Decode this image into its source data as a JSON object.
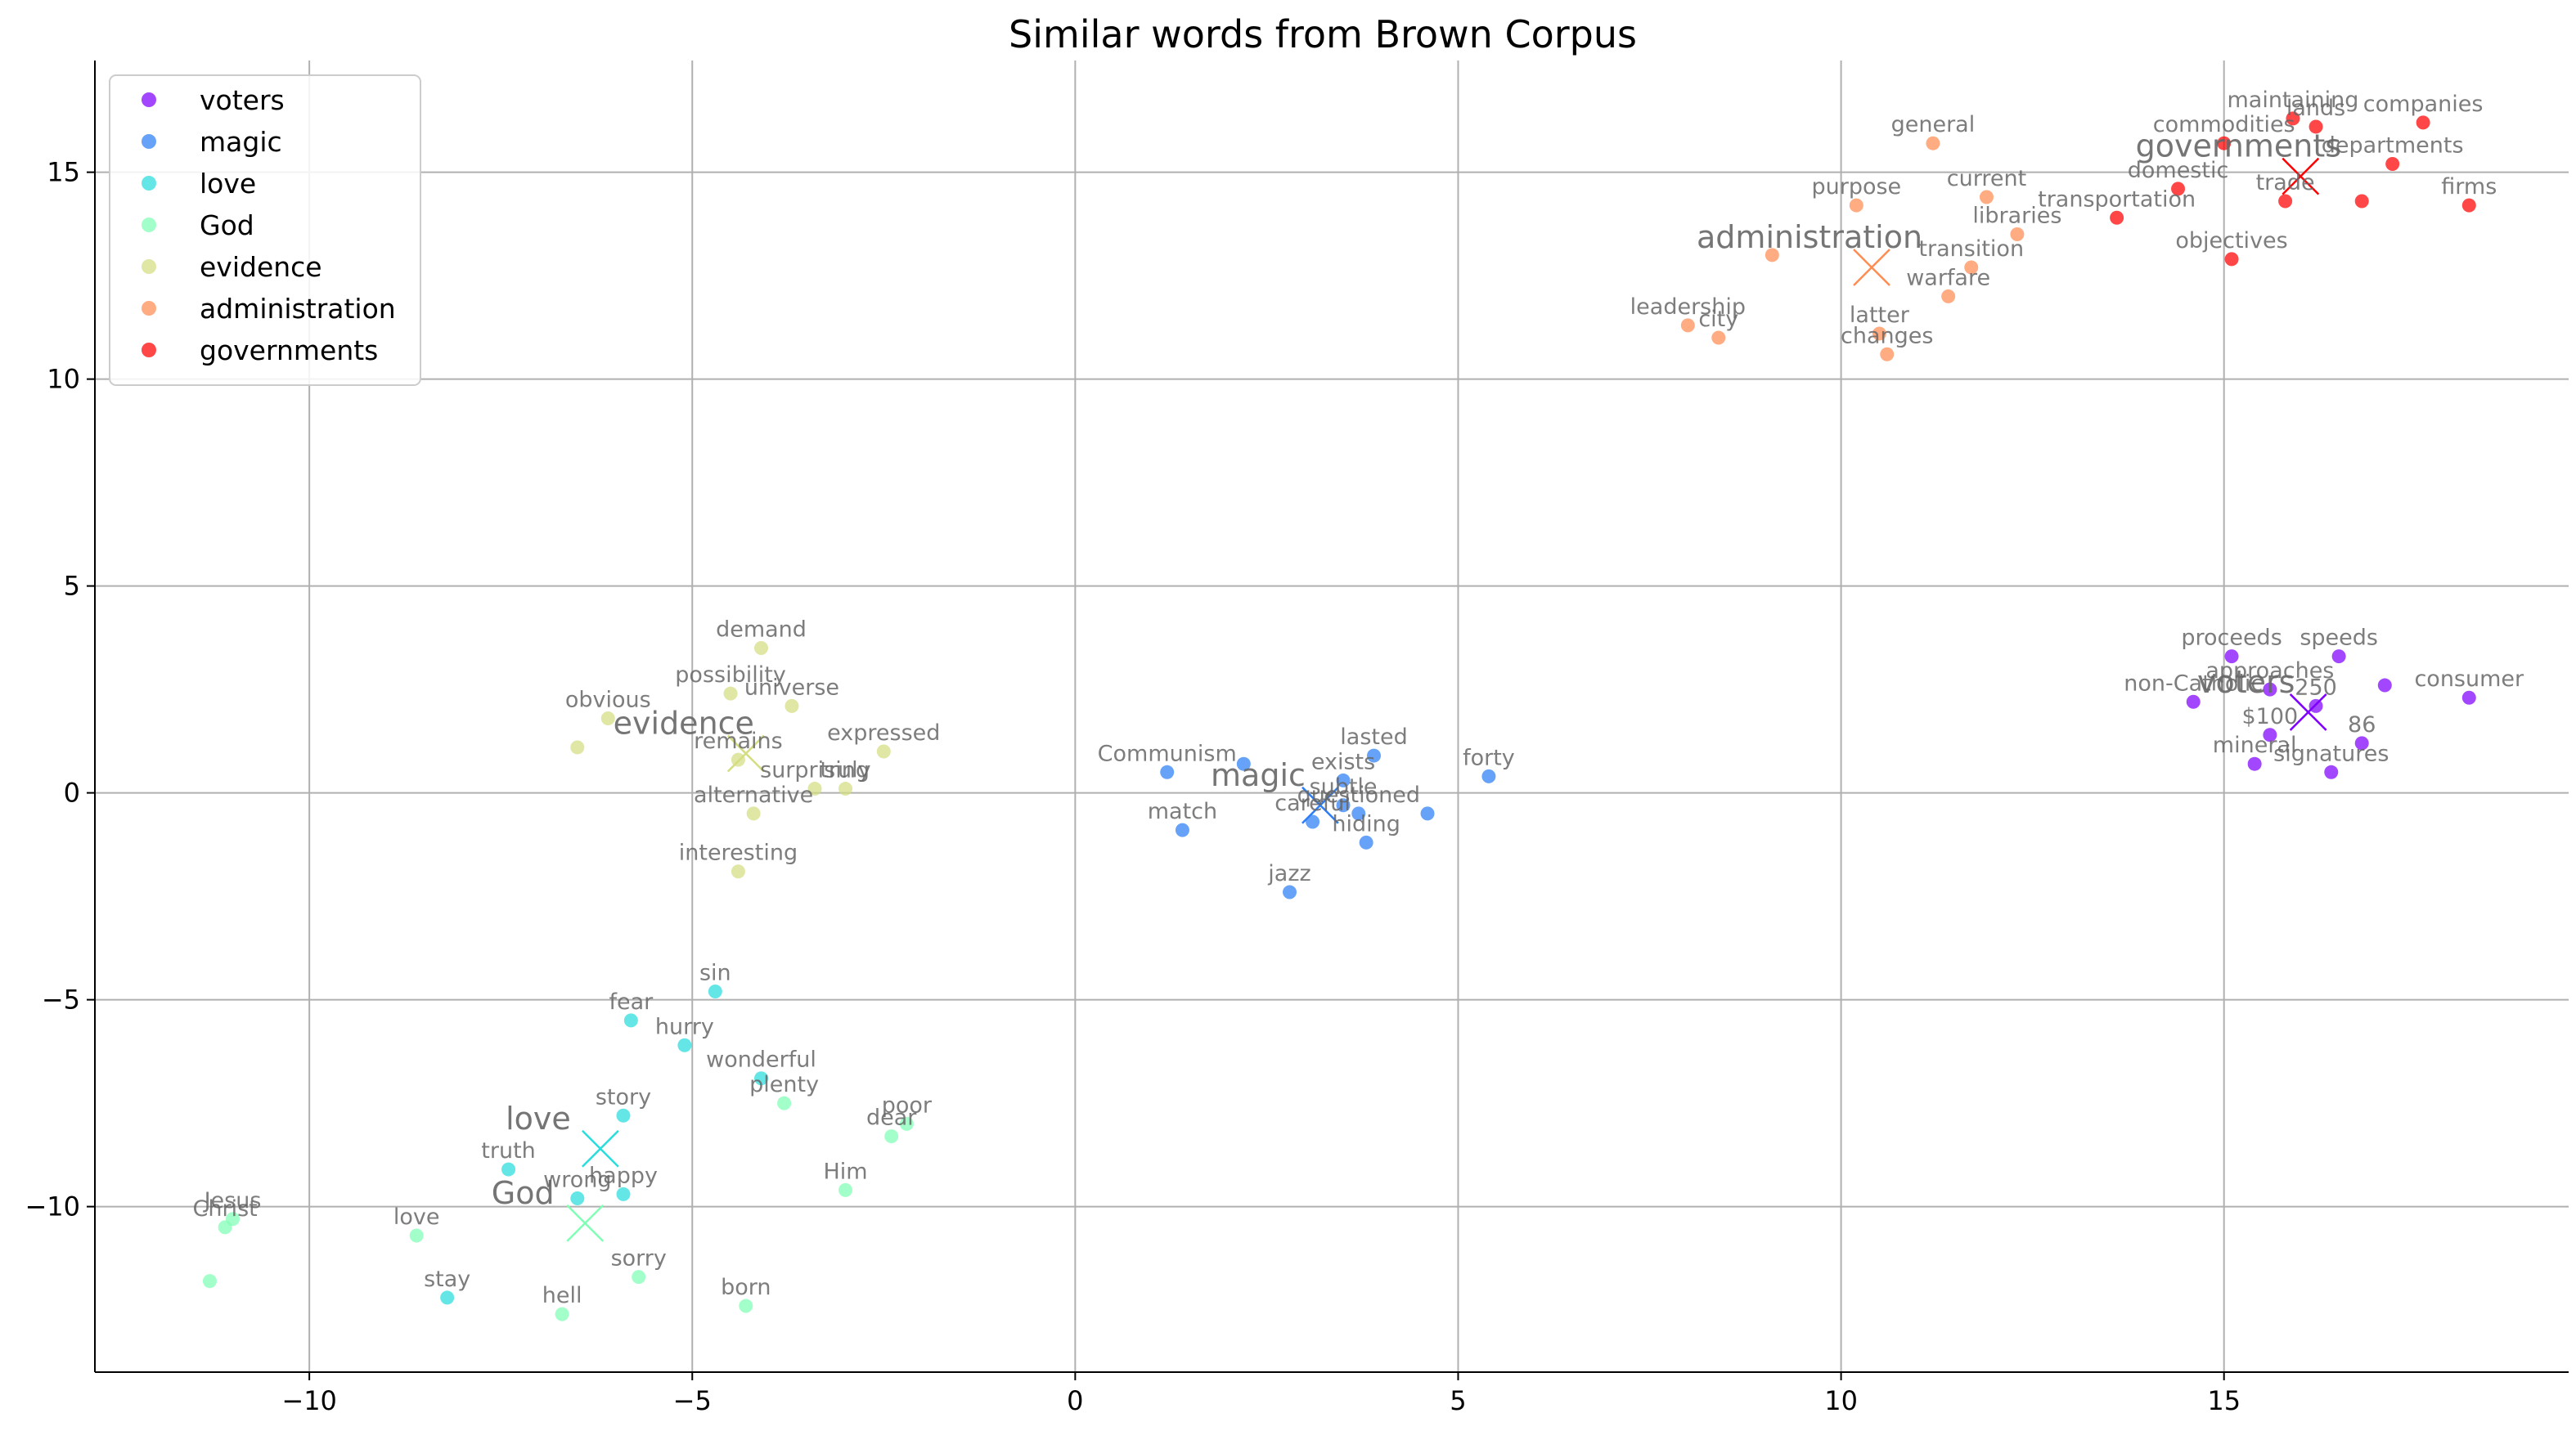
{
  "chart_data": {
    "type": "scatter",
    "title": "Similar words from Brown Corpus",
    "xlim": [
      -12.8,
      19.5
    ],
    "ylim": [
      -14.0,
      17.7
    ],
    "xticks": [
      -10,
      -5,
      0,
      5,
      10,
      15
    ],
    "yticks": [
      -10,
      -5,
      0,
      5,
      10,
      15
    ],
    "xtick_labels": [
      "−10",
      "−5",
      "0",
      "5",
      "10",
      "15"
    ],
    "ytick_labels": [
      "−10",
      "−5",
      "0",
      "5",
      "10",
      "15"
    ],
    "grid": true,
    "legend_position": "top-left",
    "series": [
      {
        "name": "voters",
        "color": "#8000ff",
        "centroid": {
          "word": "voters",
          "x": 16.1,
          "y": 1.95
        },
        "points": [
          {
            "word": "proceeds",
            "x": 15.1,
            "y": 3.3
          },
          {
            "word": "speeds",
            "x": 16.5,
            "y": 3.3
          },
          {
            "word": "approaches",
            "x": 15.6,
            "y": 2.5
          },
          {
            "word": "250",
            "x": 16.2,
            "y": 2.1
          },
          {
            "word": "non-Catholic",
            "x": 14.6,
            "y": 2.2
          },
          {
            "word": "consumer",
            "x": 18.2,
            "y": 2.3
          },
          {
            "word": "$100",
            "x": 15.6,
            "y": 1.4
          },
          {
            "word": "86",
            "x": 16.8,
            "y": 1.2
          },
          {
            "word": "mineral",
            "x": 15.4,
            "y": 0.7
          },
          {
            "word": "signatures",
            "x": 16.4,
            "y": 0.5
          },
          {
            "word": "",
            "x": 17.1,
            "y": 2.6
          }
        ]
      },
      {
        "name": "magic",
        "color": "#2c7ef7",
        "centroid": {
          "word": "magic",
          "x": 3.2,
          "y": -0.3
        },
        "points": [
          {
            "word": "Communism",
            "x": 1.2,
            "y": 0.5
          },
          {
            "word": "",
            "x": 2.2,
            "y": 0.7
          },
          {
            "word": "lasted",
            "x": 3.9,
            "y": 0.9
          },
          {
            "word": "exists",
            "x": 3.5,
            "y": 0.3
          },
          {
            "word": "forty",
            "x": 5.4,
            "y": 0.4
          },
          {
            "word": "subtle",
            "x": 3.5,
            "y": -0.3
          },
          {
            "word": "questioned",
            "x": 3.7,
            "y": -0.5
          },
          {
            "word": "careful",
            "x": 3.1,
            "y": -0.7
          },
          {
            "word": "hiding",
            "x": 3.8,
            "y": -1.2
          },
          {
            "word": "",
            "x": 4.6,
            "y": -0.5
          },
          {
            "word": "match",
            "x": 1.4,
            "y": -0.9
          },
          {
            "word": "jazz",
            "x": 2.8,
            "y": -2.4
          }
        ]
      },
      {
        "name": "love",
        "color": "#2adddd",
        "centroid": {
          "word": "love",
          "x": -6.2,
          "y": -8.6
        },
        "points": [
          {
            "word": "sin",
            "x": -4.7,
            "y": -4.8
          },
          {
            "word": "fear",
            "x": -5.8,
            "y": -5.5
          },
          {
            "word": "hurry",
            "x": -5.1,
            "y": -6.1
          },
          {
            "word": "wonderful",
            "x": -4.1,
            "y": -6.9
          },
          {
            "word": "story",
            "x": -5.9,
            "y": -7.8
          },
          {
            "word": "truth",
            "x": -7.4,
            "y": -9.1
          },
          {
            "word": "happy",
            "x": -5.9,
            "y": -9.7
          },
          {
            "word": "wrong",
            "x": -6.5,
            "y": -9.8
          },
          {
            "word": "stay",
            "x": -8.2,
            "y": -12.2
          }
        ]
      },
      {
        "name": "God",
        "color": "#80ffb4",
        "centroid": {
          "word": "God",
          "x": -6.4,
          "y": -10.4
        },
        "points": [
          {
            "word": "plenty",
            "x": -3.8,
            "y": -7.5
          },
          {
            "word": "poor",
            "x": -2.2,
            "y": -8.0
          },
          {
            "word": "dear",
            "x": -2.4,
            "y": -8.3
          },
          {
            "word": "Him",
            "x": -3.0,
            "y": -9.6
          },
          {
            "word": "Jesus",
            "x": -11.0,
            "y": -10.3
          },
          {
            "word": "Christ",
            "x": -11.1,
            "y": -10.5
          },
          {
            "word": "love",
            "x": -8.6,
            "y": -10.7
          },
          {
            "word": "sorry",
            "x": -5.7,
            "y": -11.7
          },
          {
            "word": "",
            "x": -11.3,
            "y": -11.8
          },
          {
            "word": "born",
            "x": -4.3,
            "y": -12.4
          },
          {
            "word": "hell",
            "x": -6.7,
            "y": -12.6
          }
        ]
      },
      {
        "name": "evidence",
        "color": "#d4dd80",
        "centroid": {
          "word": "evidence",
          "x": -4.3,
          "y": 0.95
        },
        "points": [
          {
            "word": "demand",
            "x": -4.1,
            "y": 3.5
          },
          {
            "word": "possibility",
            "x": -4.5,
            "y": 2.4
          },
          {
            "word": "universe",
            "x": -3.7,
            "y": 2.1
          },
          {
            "word": "obvious",
            "x": -6.1,
            "y": 1.8
          },
          {
            "word": "",
            "x": -6.5,
            "y": 1.1
          },
          {
            "word": "remains",
            "x": -4.4,
            "y": 0.8
          },
          {
            "word": "expressed",
            "x": -2.5,
            "y": 1.0
          },
          {
            "word": "surprising",
            "x": -3.4,
            "y": 0.1
          },
          {
            "word": "truly",
            "x": -3.0,
            "y": 0.1
          },
          {
            "word": "alternative",
            "x": -4.2,
            "y": -0.5
          },
          {
            "word": "interesting",
            "x": -4.4,
            "y": -1.9
          }
        ]
      },
      {
        "name": "administration",
        "color": "#ff8c52",
        "centroid": {
          "word": "administration",
          "x": 10.4,
          "y": 12.7
        },
        "points": [
          {
            "word": "general",
            "x": 11.2,
            "y": 15.7
          },
          {
            "word": "purpose",
            "x": 10.2,
            "y": 14.2
          },
          {
            "word": "current",
            "x": 11.9,
            "y": 14.4
          },
          {
            "word": "libraries",
            "x": 12.3,
            "y": 13.5
          },
          {
            "word": "",
            "x": 9.1,
            "y": 13.0
          },
          {
            "word": "transition",
            "x": 11.7,
            "y": 12.7
          },
          {
            "word": "warfare",
            "x": 11.4,
            "y": 12.0
          },
          {
            "word": "leadership",
            "x": 8.0,
            "y": 11.3
          },
          {
            "word": "city",
            "x": 8.4,
            "y": 11.0
          },
          {
            "word": "latter",
            "x": 10.5,
            "y": 11.1
          },
          {
            "word": "changes",
            "x": 10.6,
            "y": 10.6
          }
        ]
      },
      {
        "name": "governments",
        "color": "#ff0000",
        "centroid": {
          "word": "governments",
          "x": 16.0,
          "y": 14.9
        },
        "points": [
          {
            "word": "maintaining",
            "x": 15.9,
            "y": 16.3
          },
          {
            "word": "lands",
            "x": 16.2,
            "y": 16.1
          },
          {
            "word": "companies",
            "x": 17.6,
            "y": 16.2
          },
          {
            "word": "commodities",
            "x": 15.0,
            "y": 15.7
          },
          {
            "word": "departments",
            "x": 17.2,
            "y": 15.2
          },
          {
            "word": "domestic",
            "x": 14.4,
            "y": 14.6
          },
          {
            "word": "trade",
            "x": 15.8,
            "y": 14.3
          },
          {
            "word": "transportation",
            "x": 13.6,
            "y": 13.9
          },
          {
            "word": "firms",
            "x": 18.2,
            "y": 14.2
          },
          {
            "word": "",
            "x": 16.8,
            "y": 14.3
          },
          {
            "word": "objectives",
            "x": 15.1,
            "y": 12.9
          }
        ]
      }
    ]
  }
}
